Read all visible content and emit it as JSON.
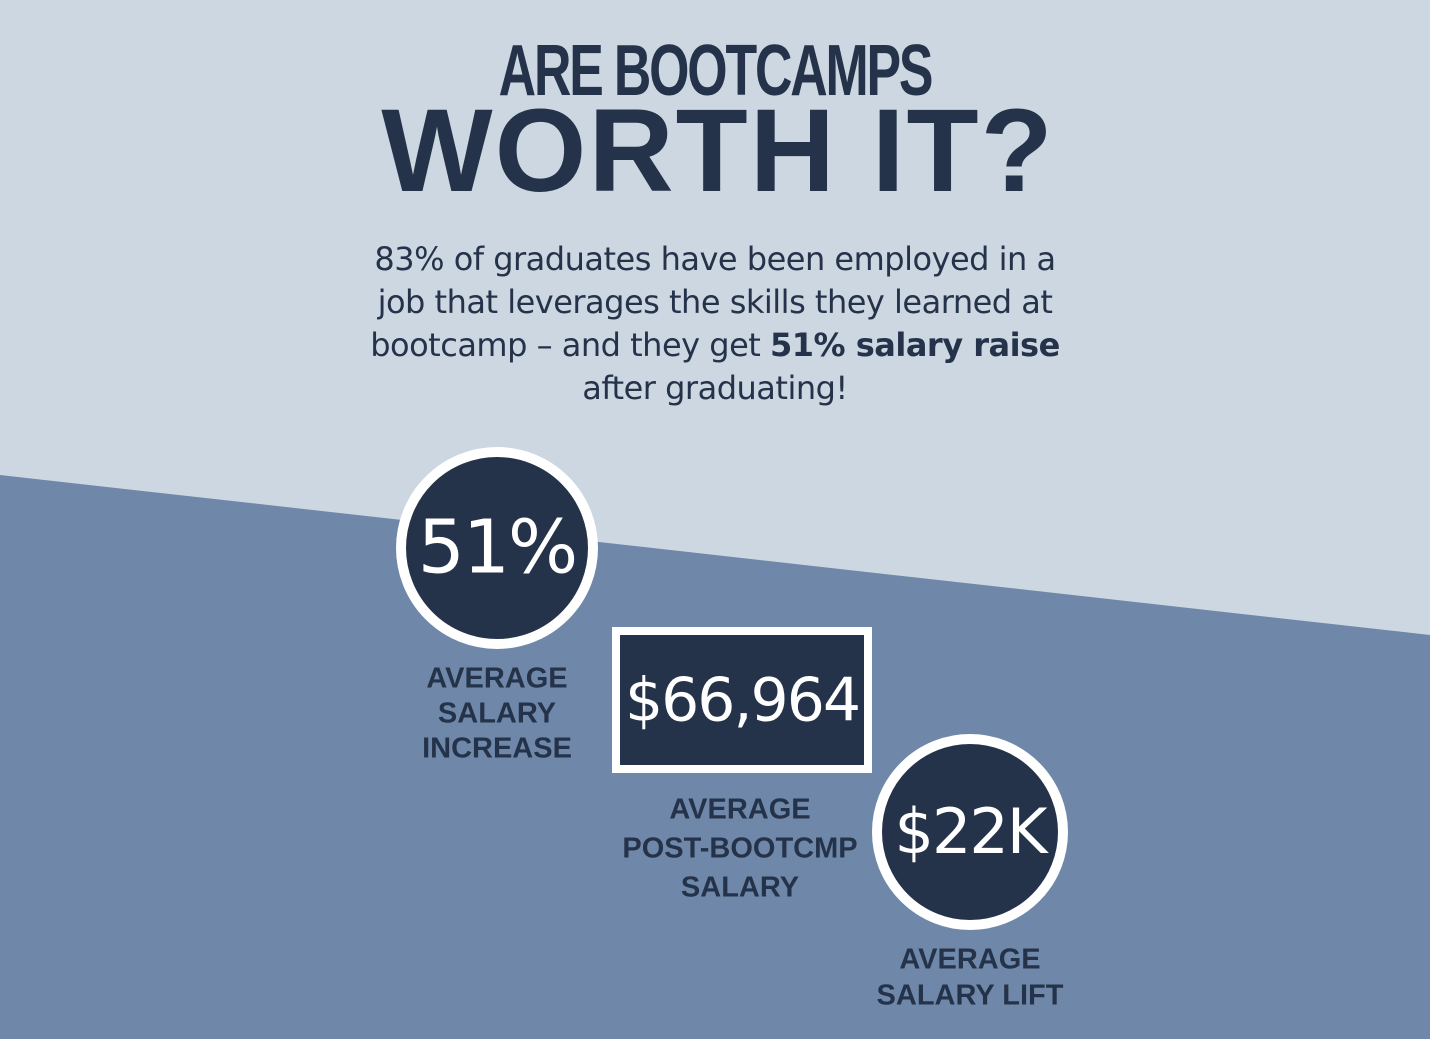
{
  "header": {
    "kicker": "ARE BOOTCAMPS",
    "title": "WORTH IT?"
  },
  "intro": {
    "lead": "83% of graduates have been employed in a job that leverages the skills they learned at bootcamp – and they get ",
    "highlight": "51% salary raise",
    "tail": " after graduating!"
  },
  "stats": [
    {
      "value": "51%",
      "label": [
        "AVERAGE",
        "SALARY",
        "INCREASE"
      ]
    },
    {
      "value": "$66,964",
      "label": [
        "AVERAGE",
        "POST-BOOTCMP",
        "SALARY"
      ]
    },
    {
      "value": "$22K",
      "label": [
        "AVERAGE",
        "SALARY LIFT"
      ]
    }
  ]
}
